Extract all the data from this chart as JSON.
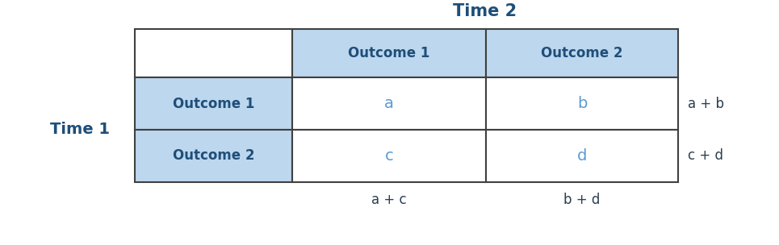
{
  "title": "Time 2",
  "row_label": "Time 1",
  "col_headers": [
    "Outcome 1",
    "Outcome 2"
  ],
  "row_headers": [
    "Outcome 1",
    "Outcome 2"
  ],
  "cell_values": [
    [
      "a",
      "b"
    ],
    [
      "c",
      "d"
    ]
  ],
  "row_totals": [
    "a + b",
    "c + d"
  ],
  "col_totals": [
    "a + c",
    "b + d"
  ],
  "header_bg_color": "#BDD7EE",
  "header_text_color": "#1F4E79",
  "cell_text_color": "#5B9BD5",
  "row_total_text_color": "#2c3e50",
  "col_total_text_color": "#2c3e50",
  "title_color": "#1F4E79",
  "row_label_color": "#1F4E79",
  "border_color": "#404040",
  "bg_color": "#ffffff",
  "title_fontsize": 15,
  "header_fontsize": 12,
  "cell_fontsize": 14,
  "label_fontsize": 14,
  "total_fontsize": 12
}
